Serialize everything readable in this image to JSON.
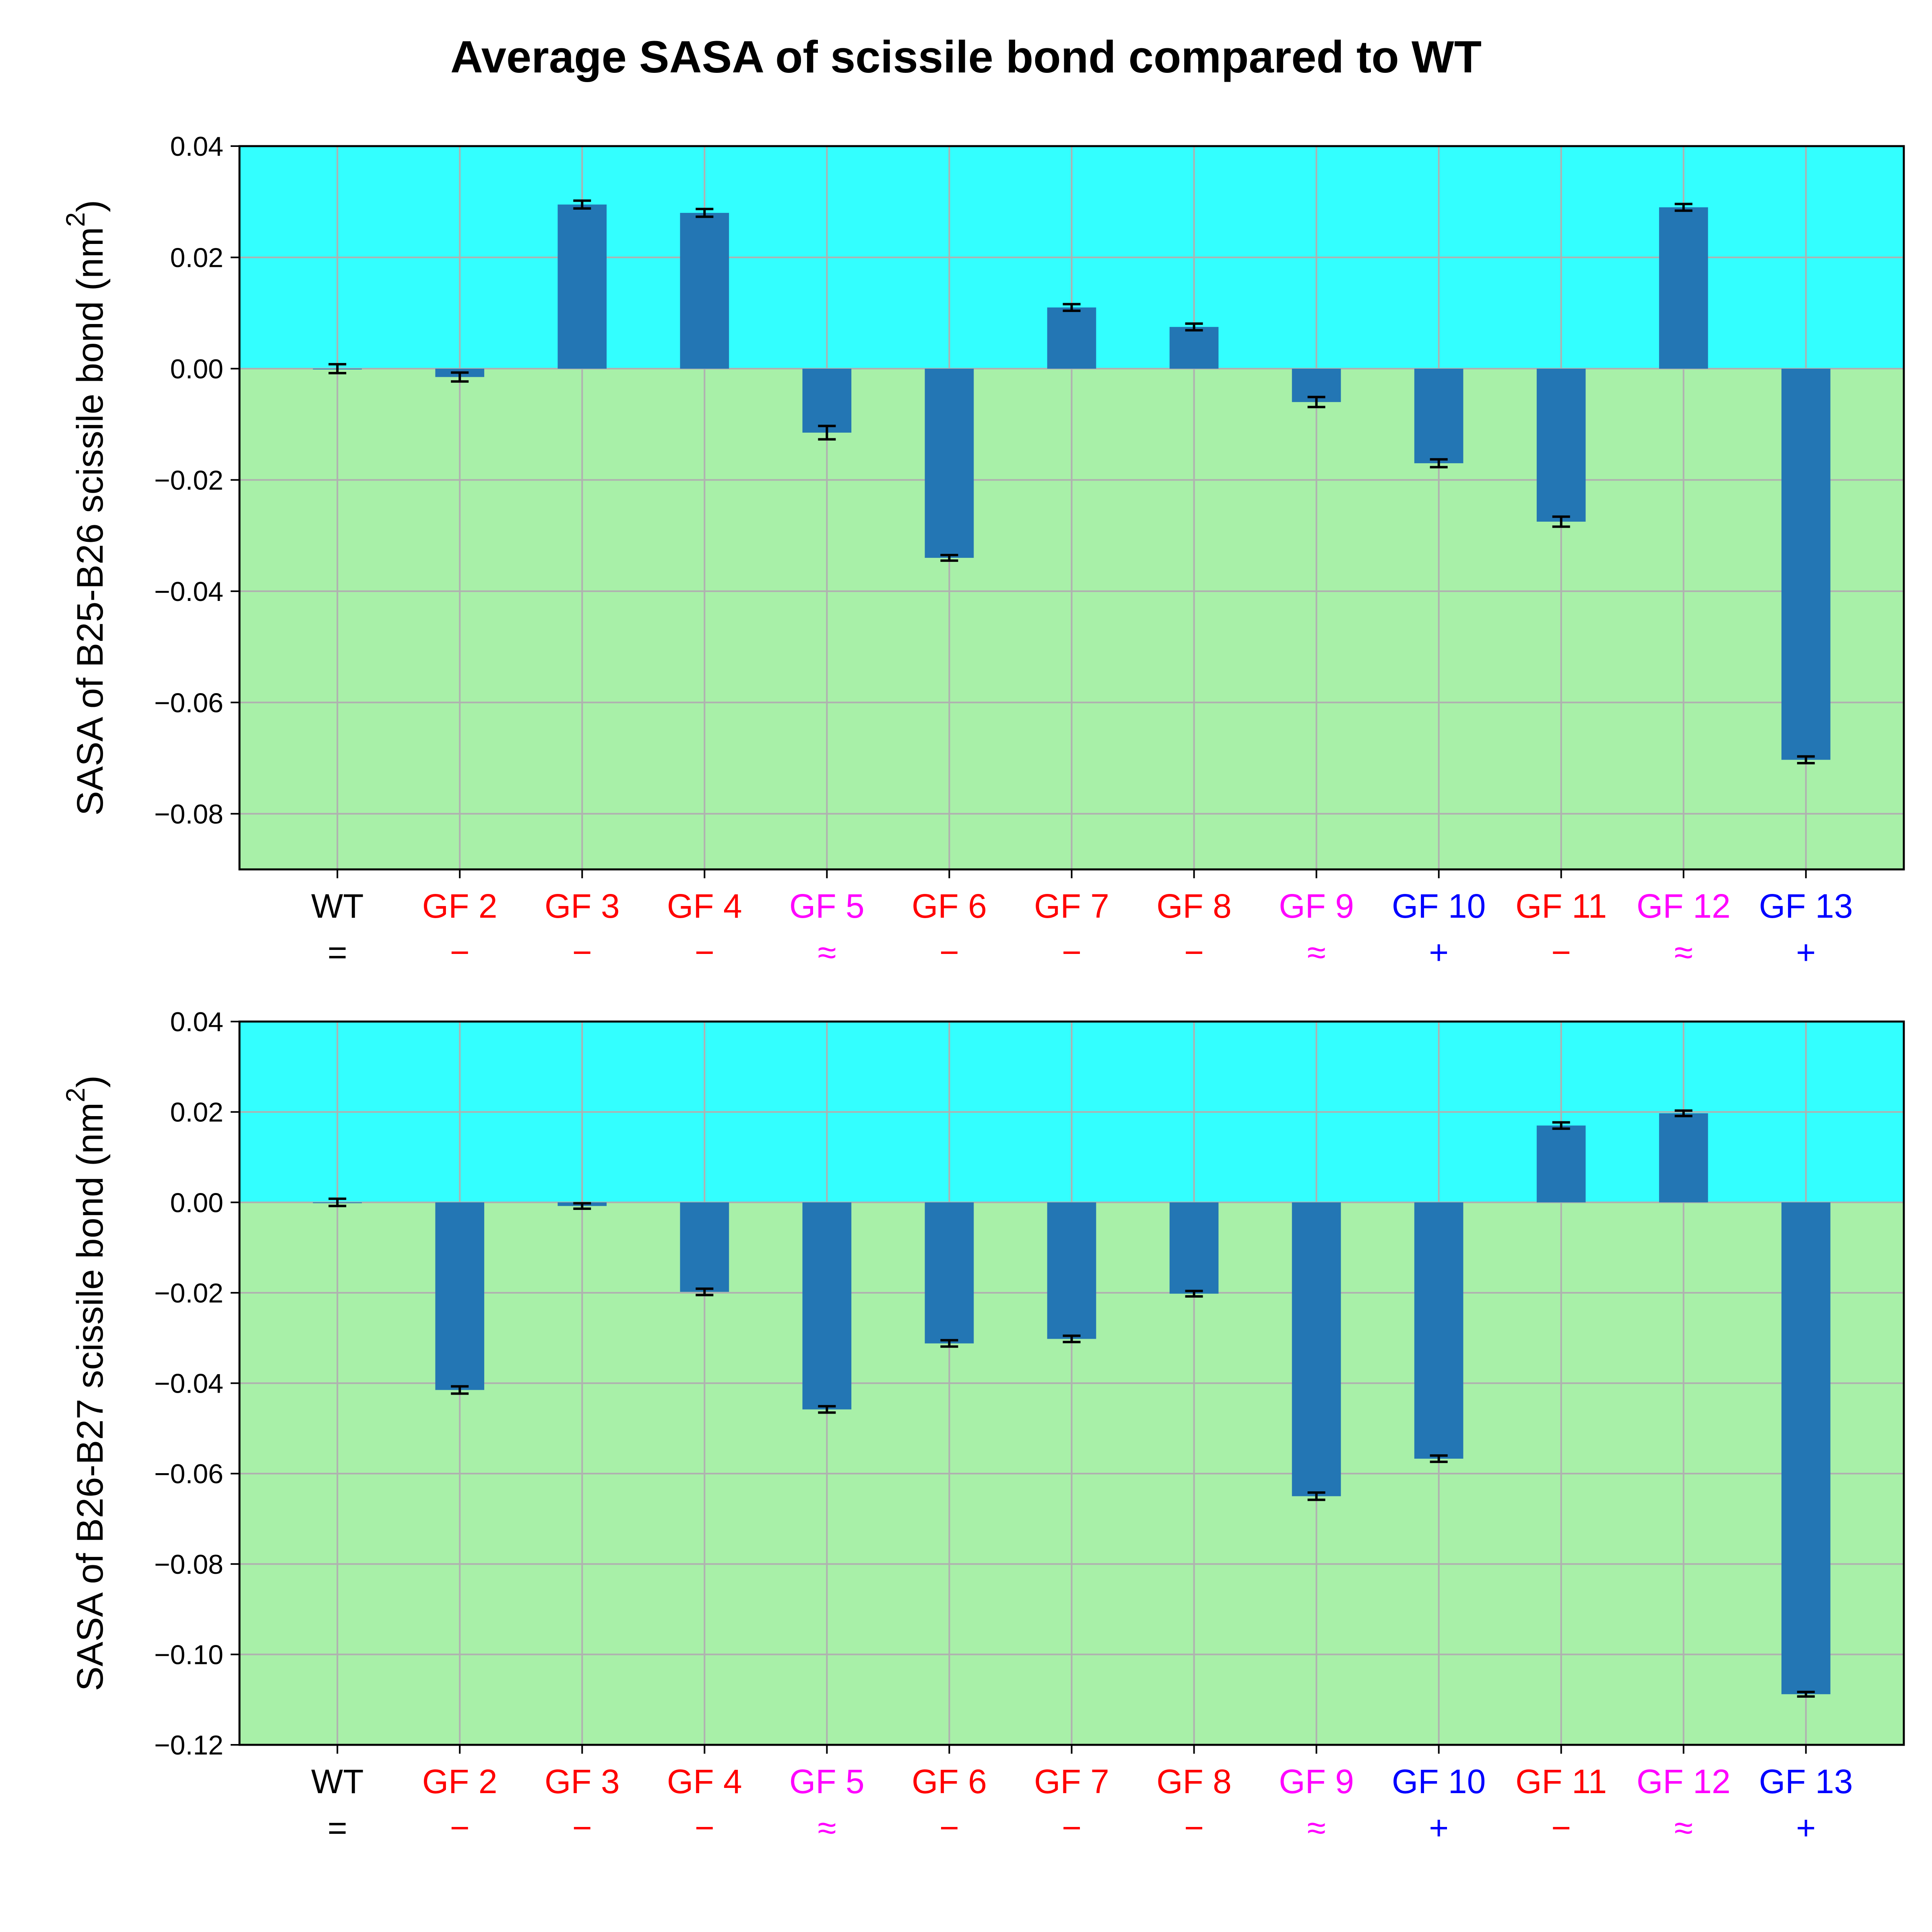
{
  "title": "Average SASA of scissile bond compared to WT",
  "colors": {
    "positive_region": "#33ffff",
    "negative_region": "#a8f0a8",
    "bar": "#2376b4",
    "grid": "#b0b0b0",
    "error": "#000000",
    "label_colors": {
      "black": "#000000",
      "red": "#ff0000",
      "magenta": "#ff00ff",
      "blue": "#0000ff"
    }
  },
  "chart_data": [
    {
      "type": "bar",
      "ylabel": "SASA of B25-B26 scissile bond (nm²)",
      "ylabel_main": "SASA of B25-B26 scissile bond (nm",
      "ylabel_sup": "2",
      "ylabel_close": ")",
      "ylim": [
        -0.09,
        0.04
      ],
      "yticks": [
        0.04,
        0.02,
        0.0,
        -0.02,
        -0.04,
        -0.06,
        -0.08
      ],
      "ytick_labels": [
        "0.04",
        "0.02",
        "0.00",
        "−0.02",
        "−0.04",
        "−0.06",
        "−0.08"
      ],
      "grid": true,
      "categories": [
        "WT",
        "GF 2",
        "GF 3",
        "GF 4",
        "GF 5",
        "GF 6",
        "GF 7",
        "GF 8",
        "GF 9",
        "GF 10",
        "GF 11",
        "GF 12",
        "GF 13"
      ],
      "symbols": [
        "=",
        "−",
        "−",
        "−",
        "≈",
        "−",
        "−",
        "−",
        "≈",
        "+",
        "−",
        "≈",
        "+"
      ],
      "label_colors": [
        "black",
        "red",
        "red",
        "red",
        "magenta",
        "red",
        "red",
        "red",
        "magenta",
        "blue",
        "red",
        "magenta",
        "blue"
      ],
      "values": [
        0.0,
        -0.0015,
        0.0295,
        0.028,
        -0.0115,
        -0.034,
        0.011,
        0.0075,
        -0.006,
        -0.017,
        -0.0275,
        0.029,
        -0.0703
      ],
      "errors": [
        0.0008,
        0.0008,
        0.0007,
        0.0007,
        0.0012,
        0.0005,
        0.0006,
        0.0006,
        0.0009,
        0.0007,
        0.0009,
        0.0006,
        0.0006
      ]
    },
    {
      "type": "bar",
      "ylabel": "SASA of B26-B27 scissile bond (nm²)",
      "ylabel_main": "SASA of B26-B27 scissile bond (nm",
      "ylabel_sup": "2",
      "ylabel_close": ")",
      "ylim": [
        -0.12,
        0.04
      ],
      "yticks": [
        0.04,
        0.02,
        0.0,
        -0.02,
        -0.04,
        -0.06,
        -0.08,
        -0.1,
        -0.12
      ],
      "ytick_labels": [
        "0.04",
        "0.02",
        "0.00",
        "−0.02",
        "−0.04",
        "−0.06",
        "−0.08",
        "−0.10",
        "−0.12"
      ],
      "grid": true,
      "categories": [
        "WT",
        "GF 2",
        "GF 3",
        "GF 4",
        "GF 5",
        "GF 6",
        "GF 7",
        "GF 8",
        "GF 9",
        "GF 10",
        "GF 11",
        "GF 12",
        "GF 13"
      ],
      "symbols": [
        "=",
        "−",
        "−",
        "−",
        "≈",
        "−",
        "−",
        "−",
        "≈",
        "+",
        "−",
        "≈",
        "+"
      ],
      "label_colors": [
        "black",
        "red",
        "red",
        "red",
        "magenta",
        "red",
        "red",
        "red",
        "magenta",
        "blue",
        "red",
        "magenta",
        "blue"
      ],
      "values": [
        0.0,
        -0.0415,
        -0.0008,
        -0.0198,
        -0.0458,
        -0.0312,
        -0.0302,
        -0.0202,
        -0.065,
        -0.0567,
        0.017,
        0.0197,
        -0.1088
      ],
      "errors": [
        0.0008,
        0.0008,
        0.0006,
        0.0007,
        0.0007,
        0.0007,
        0.0007,
        0.0006,
        0.0008,
        0.0007,
        0.0007,
        0.0006,
        0.0005
      ]
    }
  ]
}
